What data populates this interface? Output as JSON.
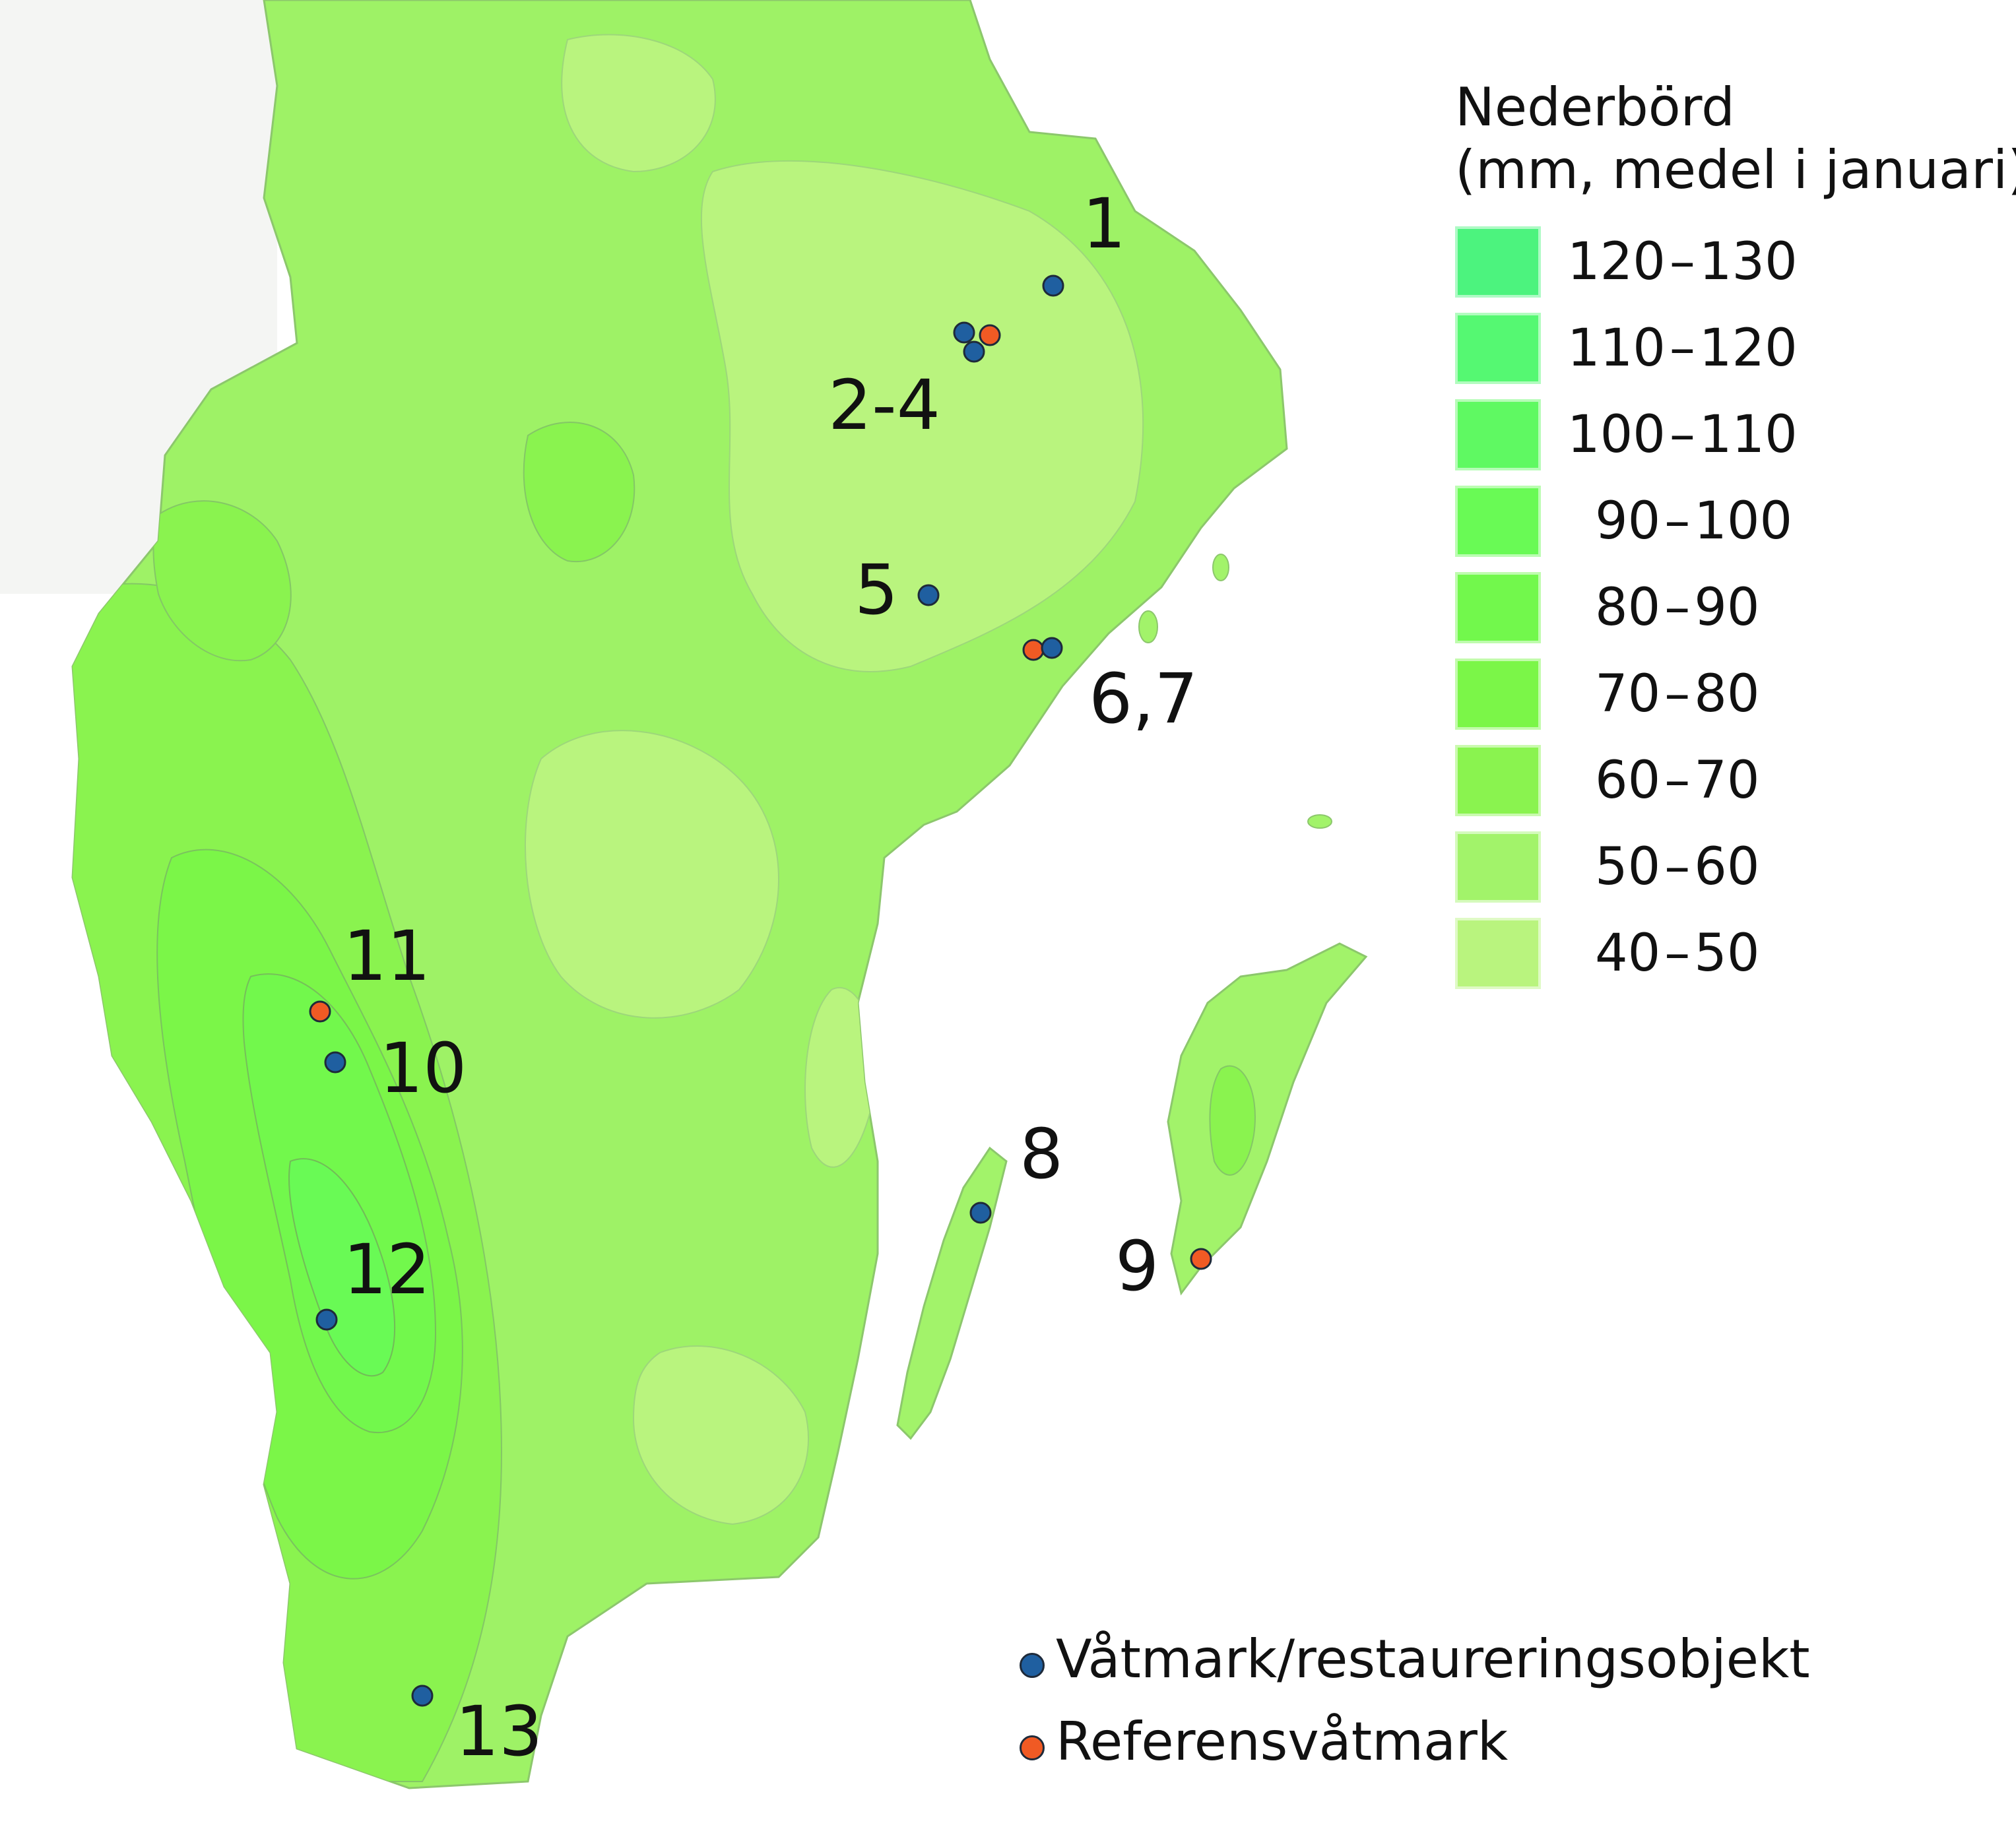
{
  "legend": {
    "title_line1": "Nederbörd",
    "title_line2": "(mm, medel i januari)",
    "classes": [
      {
        "from": "120",
        "to": "130",
        "color": "#4cf37e"
      },
      {
        "from": "110",
        "to": "120",
        "color": "#55f872"
      },
      {
        "from": "100",
        "to": "110",
        "color": "#5ff962"
      },
      {
        "from": "90",
        "to": "100",
        "color": "#69fa55"
      },
      {
        "from": "80",
        "to": "90",
        "color": "#72f84c"
      },
      {
        "from": "70",
        "to": "80",
        "color": "#7bf648"
      },
      {
        "from": "60",
        "to": "70",
        "color": "#8af34f"
      },
      {
        "from": "50",
        "to": "60",
        "color": "#a2f36a"
      },
      {
        "from": "40",
        "to": "50",
        "color": "#b9f47e"
      }
    ]
  },
  "marker_legend": {
    "restoration": {
      "label": "Våtmark/restaureringsobjekt",
      "color": "#1f5fa0"
    },
    "reference": {
      "label": "Referensvåtmark",
      "color": "#f05a24"
    }
  },
  "sites": {
    "s1": "1",
    "s2_4": "2-4",
    "s5": "5",
    "s6_7": "6,7",
    "s8": "8",
    "s9": "9",
    "s10": "10",
    "s11": "11",
    "s12": "12",
    "s13": "13"
  }
}
